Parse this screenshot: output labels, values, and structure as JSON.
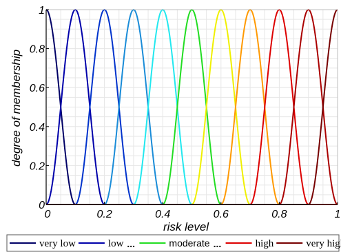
{
  "chart_data": {
    "type": "line",
    "xlabel": "risk level",
    "ylabel": "degree of membership",
    "xlim": [
      0,
      1
    ],
    "ylim": [
      0,
      1
    ],
    "x_ticks": [
      "0",
      "0.2",
      "0.4",
      "0.6",
      "0.8",
      "1"
    ],
    "x_tick_values": [
      0,
      0.2,
      0.4,
      0.6,
      0.8,
      1
    ],
    "y_ticks": [
      "0",
      "0.2",
      "0.4",
      "0.6",
      "0.8",
      "1"
    ],
    "y_tick_values": [
      0,
      0.2,
      0.4,
      0.6,
      0.8,
      1
    ],
    "grid": true,
    "legend_position": "bottom",
    "series": [
      {
        "peak": 0.0,
        "color": "#000066"
      },
      {
        "peak": 0.1,
        "color": "#0000aa"
      },
      {
        "peak": 0.2,
        "color": "#0033cc"
      },
      {
        "peak": 0.3,
        "color": "#1a8cd8"
      },
      {
        "peak": 0.4,
        "color": "#22e8ef"
      },
      {
        "peak": 0.5,
        "color": "#22dd22"
      },
      {
        "peak": 0.6,
        "color": "#f0f000"
      },
      {
        "peak": 0.7,
        "color": "#ff9900"
      },
      {
        "peak": 0.8,
        "color": "#dd0000"
      },
      {
        "peak": 0.9,
        "color": "#aa0000"
      },
      {
        "peak": 1.0,
        "color": "#770000"
      }
    ],
    "curve_half_width": 0.1,
    "legend": [
      {
        "label": "very low",
        "color": "#000066",
        "font": "serif"
      },
      {
        "label": "low",
        "color": "#0000aa",
        "font": "serif"
      },
      {
        "label": "...",
        "color": "",
        "font": "sep"
      },
      {
        "label": "moderate",
        "color": "#22dd22",
        "font": "sans"
      },
      {
        "label": "...",
        "color": "",
        "font": "sep"
      },
      {
        "label": "high",
        "color": "#dd0000",
        "font": "serif"
      },
      {
        "label": "very high",
        "color": "#770000",
        "font": "serif"
      }
    ]
  }
}
